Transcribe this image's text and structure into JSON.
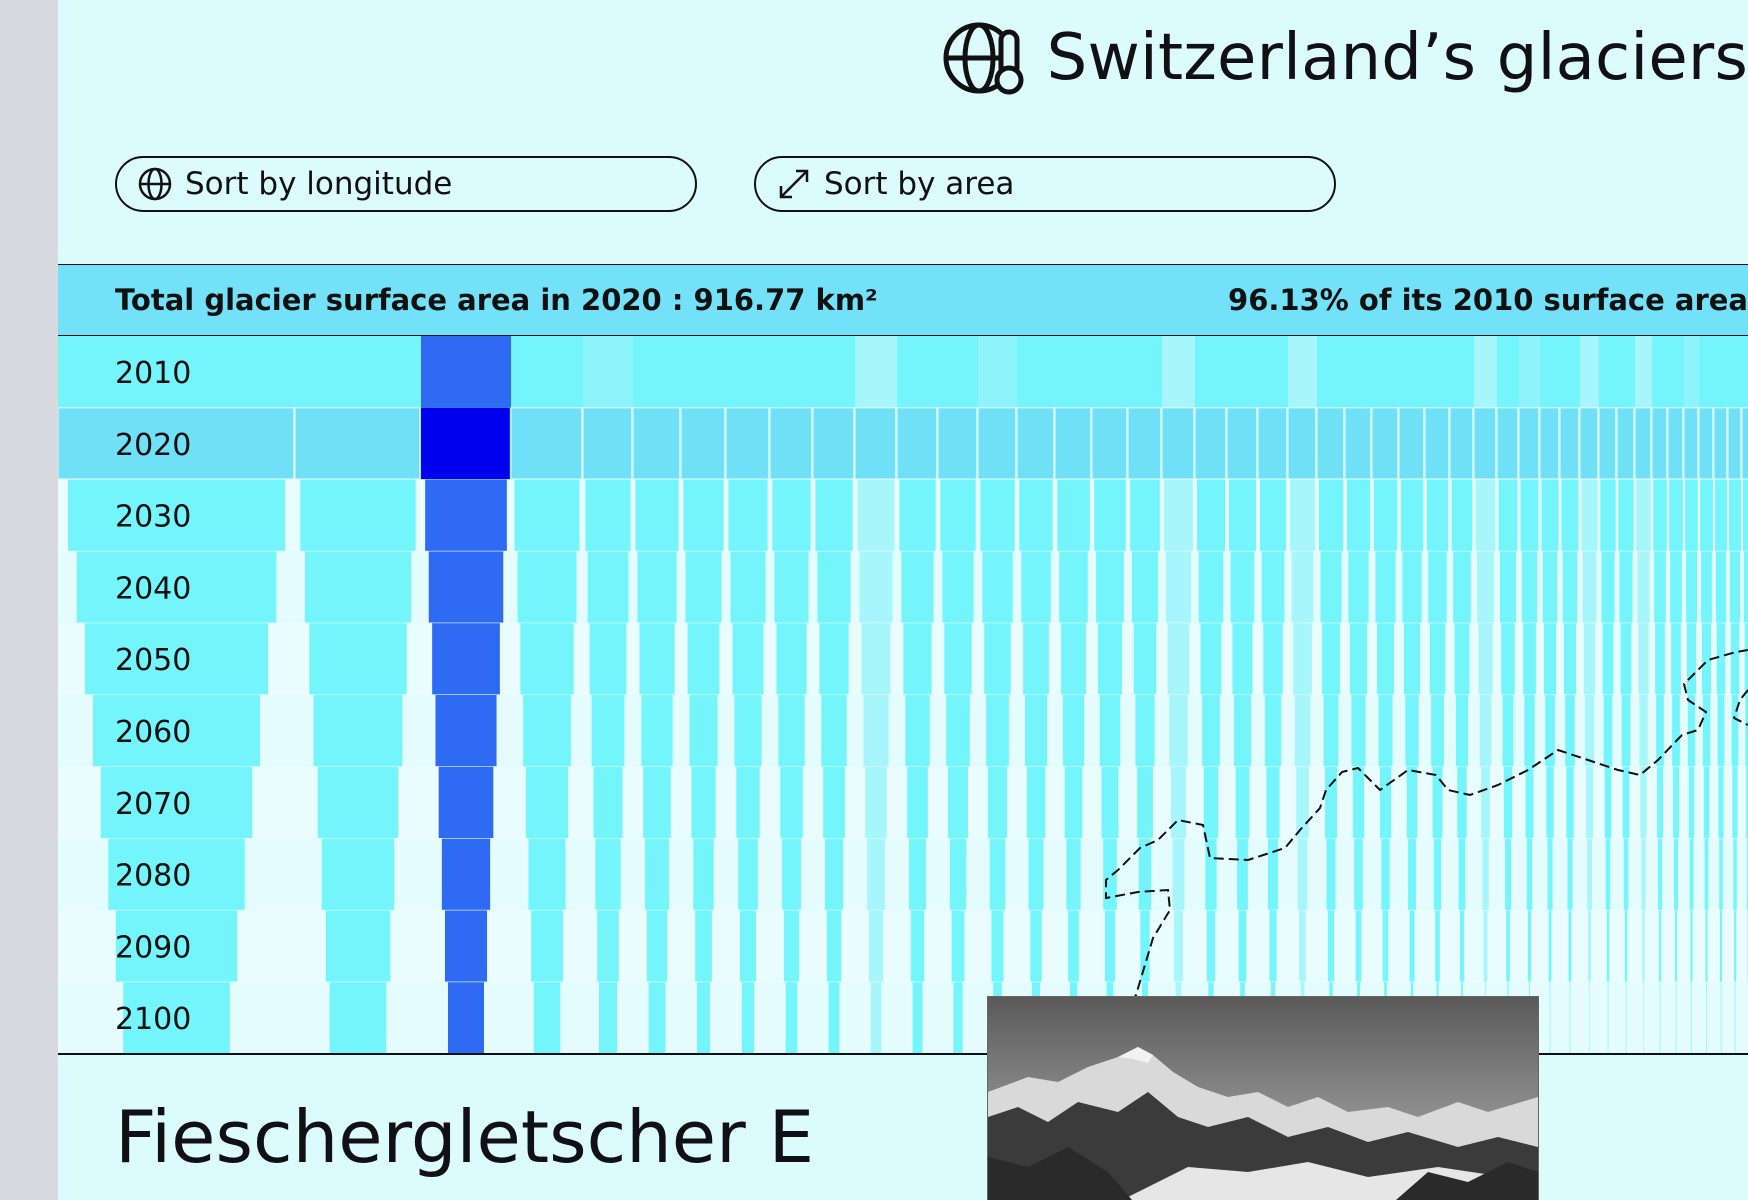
{
  "header": {
    "title": "Switzerland’s glaciers",
    "logo_icon": "globe-thermometer-icon"
  },
  "controls": {
    "sort_longitude": {
      "label": "Sort by longitude",
      "icon": "globe-icon"
    },
    "sort_area": {
      "label": "Sort by area",
      "icon": "expand-arrows-icon"
    }
  },
  "summary": {
    "total_label": "Total glacier surface area in 2020 : 916.77 km²",
    "percent_label": "96.13% of its 2010 surface area"
  },
  "chart_data": {
    "type": "heatmap",
    "years": [
      "2010",
      "2020",
      "2030",
      "2040",
      "2050",
      "2060",
      "2070",
      "2080",
      "2090",
      "2100"
    ],
    "highlight_color": "#0000ee",
    "shrink_color": "#2f6af2",
    "base_color": "#73f5fb",
    "row_2020_color": "#6fe0f6"
  },
  "selection": {
    "glacier_name": "Fieschergletscher E"
  },
  "colors": {
    "background": "#dbfbfd",
    "summary_bar": "#73e2f8",
    "text": "#111111"
  }
}
